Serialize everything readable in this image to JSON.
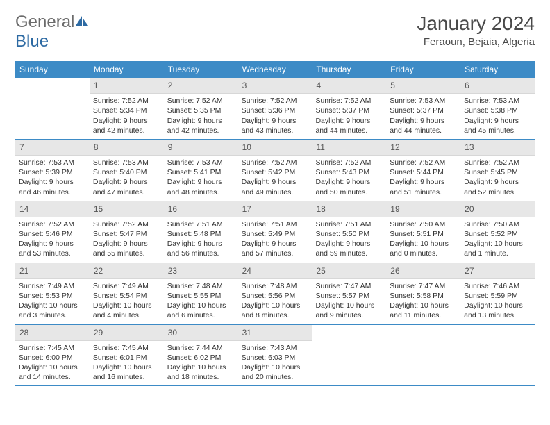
{
  "logo": {
    "text1": "General",
    "text2": "Blue"
  },
  "title": "January 2024",
  "location": "Feraoun, Bejaia, Algeria",
  "colors": {
    "header_bg": "#3d8bc6",
    "daynum_bg": "#e7e7e7",
    "border": "#3d8bc6"
  },
  "dayNames": [
    "Sunday",
    "Monday",
    "Tuesday",
    "Wednesday",
    "Thursday",
    "Friday",
    "Saturday"
  ],
  "weeks": [
    [
      {
        "n": "",
        "l1": "",
        "l2": "",
        "l3": "",
        "l4": ""
      },
      {
        "n": "1",
        "l1": "Sunrise: 7:52 AM",
        "l2": "Sunset: 5:34 PM",
        "l3": "Daylight: 9 hours",
        "l4": "and 42 minutes."
      },
      {
        "n": "2",
        "l1": "Sunrise: 7:52 AM",
        "l2": "Sunset: 5:35 PM",
        "l3": "Daylight: 9 hours",
        "l4": "and 42 minutes."
      },
      {
        "n": "3",
        "l1": "Sunrise: 7:52 AM",
        "l2": "Sunset: 5:36 PM",
        "l3": "Daylight: 9 hours",
        "l4": "and 43 minutes."
      },
      {
        "n": "4",
        "l1": "Sunrise: 7:52 AM",
        "l2": "Sunset: 5:37 PM",
        "l3": "Daylight: 9 hours",
        "l4": "and 44 minutes."
      },
      {
        "n": "5",
        "l1": "Sunrise: 7:53 AM",
        "l2": "Sunset: 5:37 PM",
        "l3": "Daylight: 9 hours",
        "l4": "and 44 minutes."
      },
      {
        "n": "6",
        "l1": "Sunrise: 7:53 AM",
        "l2": "Sunset: 5:38 PM",
        "l3": "Daylight: 9 hours",
        "l4": "and 45 minutes."
      }
    ],
    [
      {
        "n": "7",
        "l1": "Sunrise: 7:53 AM",
        "l2": "Sunset: 5:39 PM",
        "l3": "Daylight: 9 hours",
        "l4": "and 46 minutes."
      },
      {
        "n": "8",
        "l1": "Sunrise: 7:53 AM",
        "l2": "Sunset: 5:40 PM",
        "l3": "Daylight: 9 hours",
        "l4": "and 47 minutes."
      },
      {
        "n": "9",
        "l1": "Sunrise: 7:53 AM",
        "l2": "Sunset: 5:41 PM",
        "l3": "Daylight: 9 hours",
        "l4": "and 48 minutes."
      },
      {
        "n": "10",
        "l1": "Sunrise: 7:52 AM",
        "l2": "Sunset: 5:42 PM",
        "l3": "Daylight: 9 hours",
        "l4": "and 49 minutes."
      },
      {
        "n": "11",
        "l1": "Sunrise: 7:52 AM",
        "l2": "Sunset: 5:43 PM",
        "l3": "Daylight: 9 hours",
        "l4": "and 50 minutes."
      },
      {
        "n": "12",
        "l1": "Sunrise: 7:52 AM",
        "l2": "Sunset: 5:44 PM",
        "l3": "Daylight: 9 hours",
        "l4": "and 51 minutes."
      },
      {
        "n": "13",
        "l1": "Sunrise: 7:52 AM",
        "l2": "Sunset: 5:45 PM",
        "l3": "Daylight: 9 hours",
        "l4": "and 52 minutes."
      }
    ],
    [
      {
        "n": "14",
        "l1": "Sunrise: 7:52 AM",
        "l2": "Sunset: 5:46 PM",
        "l3": "Daylight: 9 hours",
        "l4": "and 53 minutes."
      },
      {
        "n": "15",
        "l1": "Sunrise: 7:52 AM",
        "l2": "Sunset: 5:47 PM",
        "l3": "Daylight: 9 hours",
        "l4": "and 55 minutes."
      },
      {
        "n": "16",
        "l1": "Sunrise: 7:51 AM",
        "l2": "Sunset: 5:48 PM",
        "l3": "Daylight: 9 hours",
        "l4": "and 56 minutes."
      },
      {
        "n": "17",
        "l1": "Sunrise: 7:51 AM",
        "l2": "Sunset: 5:49 PM",
        "l3": "Daylight: 9 hours",
        "l4": "and 57 minutes."
      },
      {
        "n": "18",
        "l1": "Sunrise: 7:51 AM",
        "l2": "Sunset: 5:50 PM",
        "l3": "Daylight: 9 hours",
        "l4": "and 59 minutes."
      },
      {
        "n": "19",
        "l1": "Sunrise: 7:50 AM",
        "l2": "Sunset: 5:51 PM",
        "l3": "Daylight: 10 hours",
        "l4": "and 0 minutes."
      },
      {
        "n": "20",
        "l1": "Sunrise: 7:50 AM",
        "l2": "Sunset: 5:52 PM",
        "l3": "Daylight: 10 hours",
        "l4": "and 1 minute."
      }
    ],
    [
      {
        "n": "21",
        "l1": "Sunrise: 7:49 AM",
        "l2": "Sunset: 5:53 PM",
        "l3": "Daylight: 10 hours",
        "l4": "and 3 minutes."
      },
      {
        "n": "22",
        "l1": "Sunrise: 7:49 AM",
        "l2": "Sunset: 5:54 PM",
        "l3": "Daylight: 10 hours",
        "l4": "and 4 minutes."
      },
      {
        "n": "23",
        "l1": "Sunrise: 7:48 AM",
        "l2": "Sunset: 5:55 PM",
        "l3": "Daylight: 10 hours",
        "l4": "and 6 minutes."
      },
      {
        "n": "24",
        "l1": "Sunrise: 7:48 AM",
        "l2": "Sunset: 5:56 PM",
        "l3": "Daylight: 10 hours",
        "l4": "and 8 minutes."
      },
      {
        "n": "25",
        "l1": "Sunrise: 7:47 AM",
        "l2": "Sunset: 5:57 PM",
        "l3": "Daylight: 10 hours",
        "l4": "and 9 minutes."
      },
      {
        "n": "26",
        "l1": "Sunrise: 7:47 AM",
        "l2": "Sunset: 5:58 PM",
        "l3": "Daylight: 10 hours",
        "l4": "and 11 minutes."
      },
      {
        "n": "27",
        "l1": "Sunrise: 7:46 AM",
        "l2": "Sunset: 5:59 PM",
        "l3": "Daylight: 10 hours",
        "l4": "and 13 minutes."
      }
    ],
    [
      {
        "n": "28",
        "l1": "Sunrise: 7:45 AM",
        "l2": "Sunset: 6:00 PM",
        "l3": "Daylight: 10 hours",
        "l4": "and 14 minutes."
      },
      {
        "n": "29",
        "l1": "Sunrise: 7:45 AM",
        "l2": "Sunset: 6:01 PM",
        "l3": "Daylight: 10 hours",
        "l4": "and 16 minutes."
      },
      {
        "n": "30",
        "l1": "Sunrise: 7:44 AM",
        "l2": "Sunset: 6:02 PM",
        "l3": "Daylight: 10 hours",
        "l4": "and 18 minutes."
      },
      {
        "n": "31",
        "l1": "Sunrise: 7:43 AM",
        "l2": "Sunset: 6:03 PM",
        "l3": "Daylight: 10 hours",
        "l4": "and 20 minutes."
      },
      {
        "n": "",
        "l1": "",
        "l2": "",
        "l3": "",
        "l4": ""
      },
      {
        "n": "",
        "l1": "",
        "l2": "",
        "l3": "",
        "l4": ""
      },
      {
        "n": "",
        "l1": "",
        "l2": "",
        "l3": "",
        "l4": ""
      }
    ]
  ]
}
